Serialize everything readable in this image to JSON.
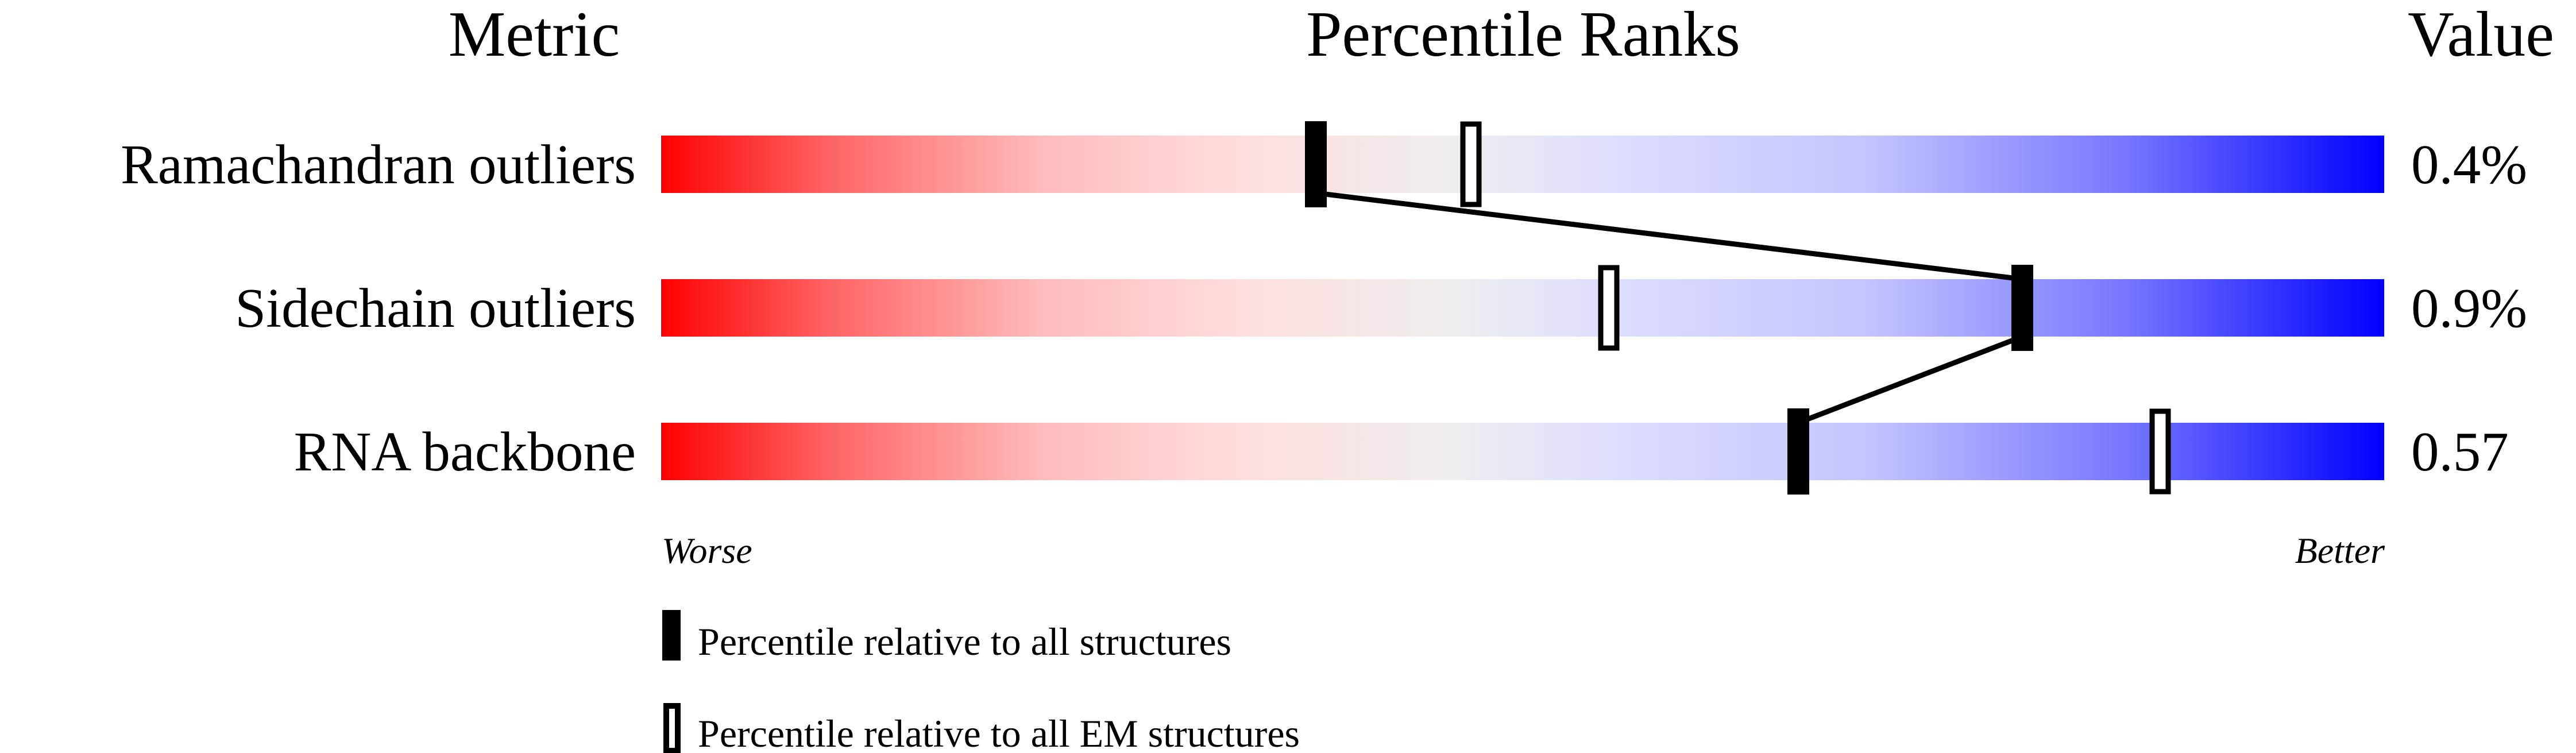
{
  "chart_data": {
    "type": "percentile-bar",
    "headers": {
      "metric": "Metric",
      "ranks": "Percentile Ranks",
      "value": "Value"
    },
    "xlim": [
      0,
      100
    ],
    "axis_labels": {
      "left": "Worse",
      "right": "Better"
    },
    "rows": [
      {
        "metric": "Ramachandran outliers",
        "value": "0.4%",
        "percentile_all": 38,
        "percentile_em": 47
      },
      {
        "metric": "Sidechain outliers",
        "value": "0.9%",
        "percentile_all": 79,
        "percentile_em": 55
      },
      {
        "metric": "RNA backbone",
        "value": "0.57",
        "percentile_all": 66,
        "percentile_em": 87
      }
    ],
    "legend": [
      {
        "marker": "filled",
        "label": "Percentile relative to all structures"
      },
      {
        "marker": "open",
        "label": "Percentile relative to all EM structures"
      }
    ],
    "colors": {
      "worse": "#ff0000",
      "middle": "#eeeeee",
      "better": "#0000ff",
      "marker": "#000000"
    }
  }
}
